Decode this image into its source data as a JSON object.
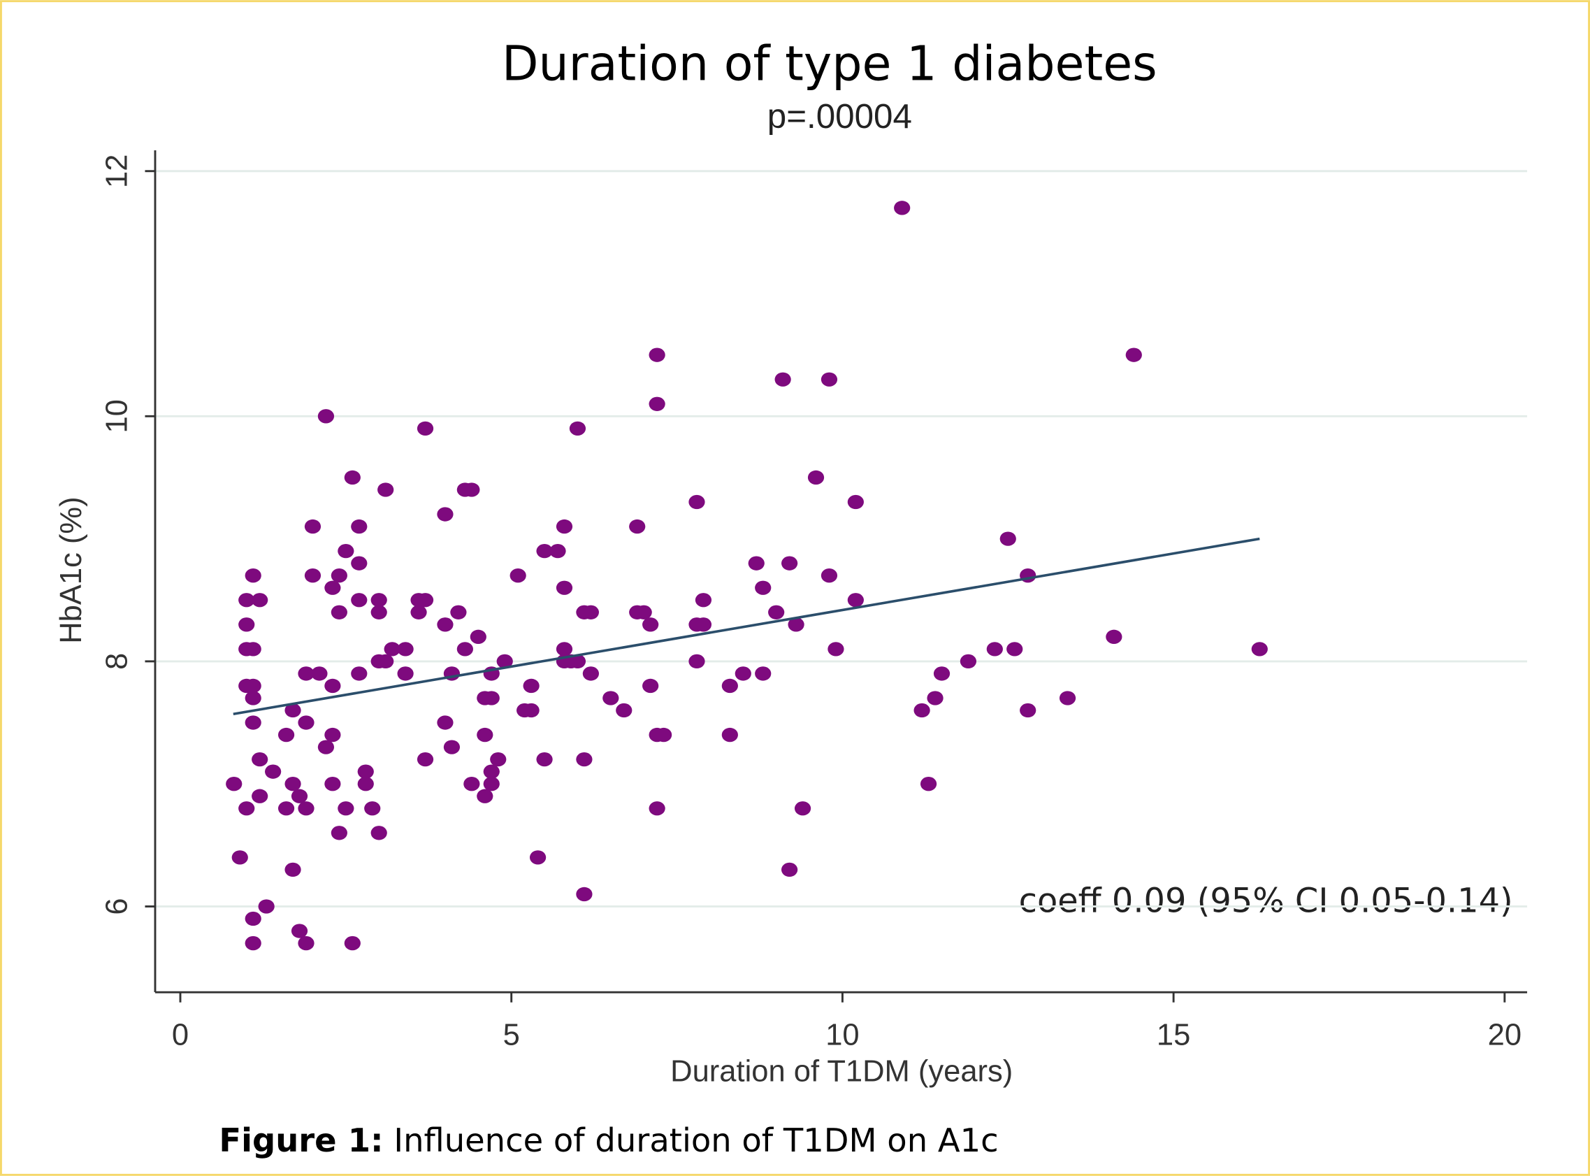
{
  "chart_data": {
    "type": "scatter",
    "title": "Duration of type 1 diabetes",
    "subtitle": "p=.00004",
    "x_label": "Duration of T1DM (years)",
    "y_label": "HbA1c (%)",
    "annotation": "coeff 0.09 (95% CI 0.05-0.14)",
    "caption_label": "Figure 1:",
    "caption_text": "Influence of duration of T1DM on A1c",
    "color": "#7e0a7e",
    "xlim": [
      -0.38,
      20.34
    ],
    "ylim": [
      5.3,
      12.17
    ],
    "xticks": [
      0,
      5,
      10,
      15,
      20
    ],
    "yticks": [
      6,
      8,
      10,
      12
    ],
    "grid": true,
    "x": [
      0.81,
      0.9,
      1.0,
      1.0,
      1.0,
      1.0,
      1.0,
      1.1,
      1.1,
      1.1,
      1.1,
      1.1,
      1.1,
      1.1,
      1.2,
      1.2,
      1.2,
      1.3,
      1.4,
      1.6,
      1.6,
      1.7,
      1.7,
      1.7,
      1.8,
      1.8,
      1.9,
      1.9,
      1.9,
      1.9,
      2.0,
      2.0,
      2.1,
      2.2,
      2.2,
      2.3,
      2.3,
      2.3,
      2.3,
      2.4,
      2.4,
      2.4,
      2.5,
      2.5,
      2.6,
      2.6,
      2.7,
      2.7,
      2.7,
      2.7,
      2.8,
      2.8,
      2.9,
      3.0,
      3.0,
      3.0,
      3.0,
      3.1,
      3.1,
      3.2,
      3.4,
      3.4,
      3.6,
      3.6,
      3.7,
      3.7,
      3.7,
      4.0,
      4.0,
      4.0,
      4.1,
      4.1,
      4.2,
      4.3,
      4.3,
      4.4,
      4.4,
      4.5,
      4.6,
      4.6,
      4.6,
      4.7,
      4.7,
      4.7,
      4.7,
      4.8,
      4.9,
      5.1,
      5.2,
      5.3,
      5.3,
      5.4,
      5.5,
      5.5,
      5.7,
      5.8,
      5.8,
      5.8,
      5.8,
      5.9,
      6.0,
      6.0,
      6.1,
      6.1,
      6.1,
      6.2,
      6.2,
      6.5,
      6.7,
      6.9,
      6.9,
      7.0,
      7.1,
      7.1,
      7.2,
      7.2,
      7.2,
      7.2,
      7.3,
      7.8,
      7.8,
      7.8,
      7.9,
      7.9,
      8.3,
      8.3,
      8.5,
      8.7,
      8.8,
      8.8,
      9.0,
      9.1,
      9.2,
      9.2,
      9.3,
      9.4,
      9.6,
      9.8,
      9.8,
      9.9,
      10.2,
      10.2,
      10.9,
      11.2,
      11.3,
      11.4,
      11.5,
      11.9,
      12.3,
      12.5,
      12.6,
      12.8,
      12.8,
      13.4,
      14.1,
      14.4,
      16.3
    ],
    "values": [
      7.0,
      6.4,
      8.5,
      8.3,
      8.1,
      7.8,
      6.8,
      8.7,
      8.1,
      7.8,
      7.7,
      7.5,
      5.9,
      5.7,
      8.5,
      7.2,
      6.9,
      6.0,
      7.1,
      7.4,
      6.8,
      7.6,
      7.0,
      6.3,
      6.9,
      5.8,
      7.5,
      6.8,
      5.7,
      7.9,
      9.1,
      8.7,
      7.9,
      10.0,
      7.3,
      7.8,
      8.6,
      7.4,
      7.0,
      8.7,
      8.4,
      6.6,
      8.9,
      6.8,
      9.5,
      5.7,
      9.1,
      8.8,
      8.5,
      7.9,
      7.1,
      7.0,
      6.8,
      8.5,
      8.4,
      8.0,
      6.6,
      9.4,
      8.0,
      8.1,
      8.1,
      7.9,
      8.5,
      8.4,
      9.9,
      8.5,
      7.2,
      9.2,
      8.3,
      7.5,
      7.9,
      7.3,
      8.4,
      9.4,
      8.1,
      9.4,
      7.0,
      8.2,
      7.7,
      7.4,
      6.9,
      7.9,
      7.7,
      7.1,
      7.0,
      7.2,
      8.0,
      8.7,
      7.6,
      7.8,
      7.6,
      6.4,
      8.9,
      7.2,
      8.9,
      9.1,
      8.6,
      8.1,
      8.0,
      8.0,
      9.9,
      8.0,
      8.4,
      7.2,
      6.1,
      8.4,
      7.9,
      7.7,
      7.6,
      9.1,
      8.4,
      8.4,
      8.3,
      7.8,
      10.5,
      10.1,
      7.4,
      6.8,
      7.4,
      9.3,
      8.3,
      8.0,
      8.5,
      8.3,
      7.8,
      7.4,
      7.9,
      8.8,
      8.6,
      7.9,
      8.4,
      10.3,
      8.8,
      6.3,
      8.3,
      6.8,
      9.5,
      10.3,
      8.7,
      8.1,
      9.3,
      8.5,
      11.7,
      7.6,
      7.0,
      7.7,
      7.9,
      8.0,
      8.1,
      9.0,
      8.1,
      8.7,
      7.6,
      7.7,
      8.2,
      10.5,
      8.1
    ],
    "fit": {
      "x": [
        0.8,
        16.3
      ],
      "values": [
        7.57,
        9.0
      ],
      "color": "#2b4e6b"
    }
  }
}
